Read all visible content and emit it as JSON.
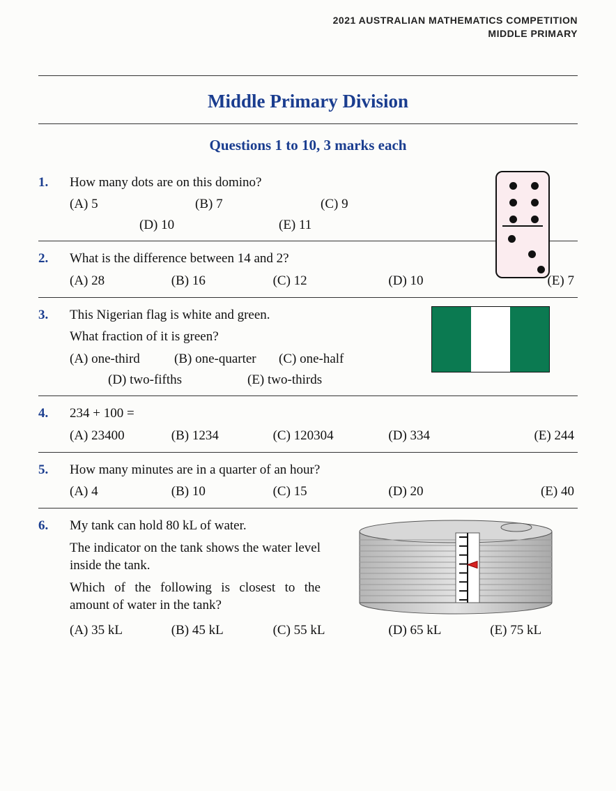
{
  "header": {
    "line1": "2021 AUSTRALIAN MATHEMATICS COMPETITION",
    "line2": "MIDDLE PRIMARY"
  },
  "title": "Middle Primary Division",
  "subtitle": "Questions 1 to 10, 3 marks each",
  "colors": {
    "accent": "#1a3d8f",
    "domino_bg": "#fbecef",
    "flag_green": "#0b7a51",
    "flag_white": "#ffffff",
    "tank_fill": "#c9c9c9",
    "tank_stroke": "#6e6e6e",
    "indicator_red": "#d62222"
  },
  "q1": {
    "num": "1.",
    "text": "How many dots are on this domino?",
    "opts": {
      "A": "(A) 5",
      "B": "(B) 7",
      "C": "(C) 9",
      "D": "(D) 10",
      "E": "(E) 11"
    },
    "domino": {
      "top_dots": [
        [
          18,
          14
        ],
        [
          49,
          14
        ],
        [
          18,
          38
        ],
        [
          49,
          38
        ],
        [
          18,
          62
        ],
        [
          49,
          62
        ]
      ],
      "bottom_dots": [
        [
          16,
          90
        ],
        [
          45,
          112
        ],
        [
          58,
          134
        ]
      ]
    }
  },
  "q2": {
    "num": "2.",
    "text": "What is the difference between 14 and 2?",
    "opts": {
      "A": "(A) 28",
      "B": "(B) 16",
      "C": "(C) 12",
      "D": "(D) 10",
      "E": "(E) 7"
    }
  },
  "q3": {
    "num": "3.",
    "line1": "This Nigerian flag is white and green.",
    "line2": "What fraction of it is green?",
    "opts": {
      "A": "(A) one-third",
      "B": "(B) one-quarter",
      "C": "(C) one-half",
      "D": "(D) two-fifths",
      "E": "(E) two-thirds"
    },
    "flag_pattern": [
      "green",
      "white",
      "green"
    ]
  },
  "q4": {
    "num": "4.",
    "text": "234 + 100 =",
    "opts": {
      "A": "(A) 23400",
      "B": "(B) 1234",
      "C": "(C) 120304",
      "D": "(D) 334",
      "E": "(E) 244"
    }
  },
  "q5": {
    "num": "5.",
    "text": "How many minutes are in a quarter of an hour?",
    "opts": {
      "A": "(A) 4",
      "B": "(B) 10",
      "C": "(C) 15",
      "D": "(D) 20",
      "E": "(E) 40"
    }
  },
  "q6": {
    "num": "6.",
    "line1": "My tank can hold 80 kL of water.",
    "line2": "The indicator on the tank shows the water level inside the tank.",
    "line3": "Which of the following is closest to the amount of water in the tank?",
    "opts": {
      "A": "(A) 35 kL",
      "B": "(B) 45 kL",
      "C": "(C) 55 kL",
      "D": "(D) 65 kL",
      "E": "(E) 75 kL"
    },
    "tank": {
      "ticks": 8,
      "indicator_level": 0.56
    }
  }
}
